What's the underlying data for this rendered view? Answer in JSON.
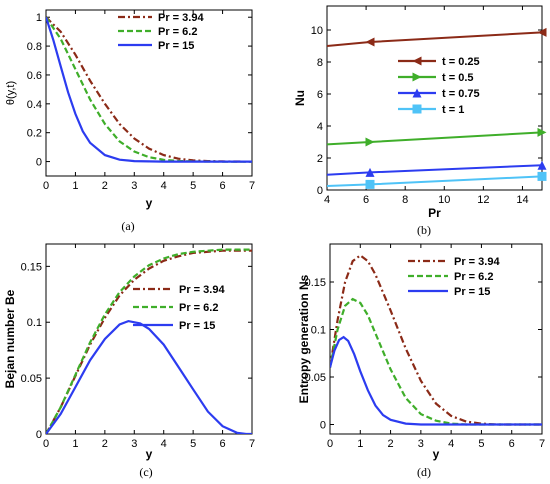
{
  "colors": {
    "red": "#8b2a17",
    "green": "#3fae2a",
    "blue": "#2c3cf0",
    "cyan": "#4fc3f7"
  },
  "chart_data": [
    {
      "id": "a",
      "type": "line",
      "caption": "(a)",
      "xlabel": "y",
      "ylabel": "θ(y,t)",
      "xlim": [
        0,
        7
      ],
      "ylim": [
        -0.1,
        1.05
      ],
      "xticks": [
        0,
        1,
        2,
        3,
        4,
        5,
        6,
        7
      ],
      "yticks": [
        0,
        0.2,
        0.4,
        0.6,
        0.8,
        1
      ],
      "xtick_labels": [
        "0",
        "1",
        "2",
        "3",
        "4",
        "5",
        "6",
        "7"
      ],
      "ytick_labels": [
        "0",
        "0.2",
        "0.4",
        "0.6",
        "0.8",
        "1"
      ],
      "legend_position": "top-right",
      "grid": false,
      "series": [
        {
          "name": "Pr = 3.94",
          "color": "#8b2a17",
          "dash": "dashdot",
          "x": [
            0,
            0.5,
            1,
            1.5,
            2,
            2.5,
            3,
            3.5,
            4,
            4.5,
            5,
            5.5,
            6,
            7
          ],
          "y": [
            1,
            0.9,
            0.74,
            0.56,
            0.4,
            0.26,
            0.16,
            0.09,
            0.045,
            0.02,
            0.008,
            0.003,
            0.001,
            0
          ]
        },
        {
          "name": "Pr = 6.2",
          "color": "#3fae2a",
          "dash": "dashed",
          "x": [
            0,
            0.5,
            1,
            1.5,
            2,
            2.5,
            3,
            3.5,
            4,
            4.5,
            5,
            6,
            7
          ],
          "y": [
            1,
            0.85,
            0.64,
            0.43,
            0.26,
            0.14,
            0.07,
            0.03,
            0.012,
            0.004,
            0.001,
            0,
            0
          ]
        },
        {
          "name": "Pr = 15",
          "color": "#2c3cf0",
          "dash": "solid",
          "x": [
            0,
            0.25,
            0.5,
            0.75,
            1,
            1.25,
            1.5,
            2,
            2.5,
            3,
            3.5,
            4,
            5,
            7
          ],
          "y": [
            1,
            0.84,
            0.66,
            0.48,
            0.33,
            0.21,
            0.13,
            0.045,
            0.013,
            0.003,
            0.001,
            0,
            0,
            0
          ]
        }
      ]
    },
    {
      "id": "b",
      "type": "line",
      "caption": "(b)",
      "xlabel": "Pr",
      "ylabel": "Nu",
      "xlim": [
        4,
        15
      ],
      "ylim": [
        0,
        11.5
      ],
      "xticks": [
        4,
        6,
        8,
        10,
        12,
        14
      ],
      "yticks": [
        0,
        2,
        4,
        6,
        8,
        10
      ],
      "xtick_labels": [
        "4",
        "6",
        "8",
        "10",
        "12",
        "14"
      ],
      "ytick_labels": [
        "0",
        "2",
        "4",
        "6",
        "8",
        "10"
      ],
      "legend_position": "center-right",
      "grid": false,
      "series": [
        {
          "name": "t = 0.25",
          "color": "#8b2a17",
          "marker": "triangle-left",
          "x": [
            4,
            6.2,
            15
          ],
          "y": [
            9.0,
            9.25,
            9.85
          ]
        },
        {
          "name": "t = 0.5",
          "color": "#3fae2a",
          "marker": "triangle-right",
          "x": [
            4,
            6.2,
            15
          ],
          "y": [
            2.85,
            3.0,
            3.6
          ]
        },
        {
          "name": "t = 0.75",
          "color": "#2c3cf0",
          "marker": "triangle-up",
          "x": [
            4,
            6.2,
            15
          ],
          "y": [
            0.95,
            1.1,
            1.55
          ]
        },
        {
          "name": "t = 1",
          "color": "#4fc3f7",
          "marker": "square",
          "x": [
            4,
            6.2,
            15
          ],
          "y": [
            0.25,
            0.35,
            0.85
          ]
        }
      ]
    },
    {
      "id": "c",
      "type": "line",
      "caption": "(c)",
      "xlabel": "y",
      "ylabel": "Bejan number Be",
      "xlim": [
        0,
        7
      ],
      "ylim": [
        0,
        0.17
      ],
      "xticks": [
        0,
        1,
        2,
        3,
        4,
        5,
        6,
        7
      ],
      "yticks": [
        0,
        0.05,
        0.1,
        0.15
      ],
      "xtick_labels": [
        "0",
        "1",
        "2",
        "3",
        "4",
        "5",
        "6",
        "7"
      ],
      "ytick_labels": [
        "0",
        "0.05",
        "0.1",
        "0.15"
      ],
      "legend_position": "center-right",
      "grid": false,
      "series": [
        {
          "name": "Pr = 3.94",
          "color": "#8b2a17",
          "dash": "dashdot",
          "x": [
            0,
            0.5,
            1,
            1.5,
            2,
            2.5,
            3,
            3.5,
            4,
            4.5,
            5,
            5.5,
            6,
            6.5,
            7
          ],
          "y": [
            0,
            0.024,
            0.052,
            0.08,
            0.104,
            0.124,
            0.138,
            0.148,
            0.155,
            0.159,
            0.162,
            0.163,
            0.164,
            0.164,
            0.164
          ]
        },
        {
          "name": "Pr = 6.2",
          "color": "#3fae2a",
          "dash": "dashed",
          "x": [
            0,
            0.5,
            1,
            1.5,
            2,
            2.5,
            3,
            3.5,
            4,
            4.5,
            5,
            5.5,
            6,
            6.5,
            7
          ],
          "y": [
            0,
            0.024,
            0.053,
            0.082,
            0.107,
            0.127,
            0.141,
            0.151,
            0.157,
            0.161,
            0.163,
            0.164,
            0.165,
            0.165,
            0.165
          ]
        },
        {
          "name": "Pr = 15",
          "color": "#2c3cf0",
          "dash": "solid",
          "x": [
            0,
            0.5,
            1,
            1.5,
            2,
            2.5,
            2.8,
            3.2,
            3.5,
            4,
            4.5,
            5,
            5.5,
            6,
            6.5,
            6.8,
            7
          ],
          "y": [
            0,
            0.018,
            0.042,
            0.066,
            0.085,
            0.098,
            0.101,
            0.099,
            0.094,
            0.08,
            0.06,
            0.04,
            0.02,
            0.007,
            0.001,
            0,
            0
          ]
        }
      ]
    },
    {
      "id": "d",
      "type": "line",
      "caption": "(d)",
      "xlabel": "y",
      "ylabel": "Entropy generation Ns",
      "xlim": [
        0,
        7
      ],
      "ylim": [
        -0.01,
        0.19
      ],
      "xticks": [
        0,
        1,
        2,
        3,
        4,
        5,
        6,
        7
      ],
      "yticks": [
        0,
        0.05,
        0.1,
        0.15
      ],
      "xtick_labels": [
        "0",
        "1",
        "2",
        "3",
        "4",
        "5",
        "6",
        "7"
      ],
      "ytick_labels": [
        "0",
        "0.05",
        "0.1",
        "0.15"
      ],
      "legend_position": "top-right",
      "grid": false,
      "series": [
        {
          "name": "Pr = 3.94",
          "color": "#8b2a17",
          "dash": "dashdot",
          "x": [
            0,
            0.25,
            0.5,
            0.75,
            1,
            1.25,
            1.5,
            2,
            2.5,
            3,
            3.5,
            4,
            4.5,
            5,
            5.5,
            6,
            7
          ],
          "y": [
            0.06,
            0.11,
            0.15,
            0.172,
            0.178,
            0.172,
            0.158,
            0.12,
            0.08,
            0.046,
            0.022,
            0.009,
            0.003,
            0.001,
            0,
            0,
            0
          ]
        },
        {
          "name": "Pr = 6.2",
          "color": "#3fae2a",
          "dash": "dashed",
          "x": [
            0,
            0.25,
            0.5,
            0.75,
            1,
            1.25,
            1.5,
            2,
            2.5,
            3,
            3.5,
            4,
            4.5,
            5,
            6,
            7
          ],
          "y": [
            0.06,
            0.1,
            0.125,
            0.132,
            0.128,
            0.115,
            0.096,
            0.058,
            0.028,
            0.011,
            0.004,
            0.001,
            0,
            0,
            0,
            0
          ]
        },
        {
          "name": "Pr = 15",
          "color": "#2c3cf0",
          "dash": "solid",
          "x": [
            0,
            0.15,
            0.3,
            0.45,
            0.6,
            0.8,
            1,
            1.25,
            1.5,
            1.75,
            2,
            2.5,
            3,
            3.5,
            4,
            5,
            7
          ],
          "y": [
            0.06,
            0.078,
            0.089,
            0.092,
            0.088,
            0.074,
            0.056,
            0.036,
            0.02,
            0.01,
            0.005,
            0.001,
            0,
            0,
            0,
            0,
            0
          ]
        }
      ]
    }
  ]
}
